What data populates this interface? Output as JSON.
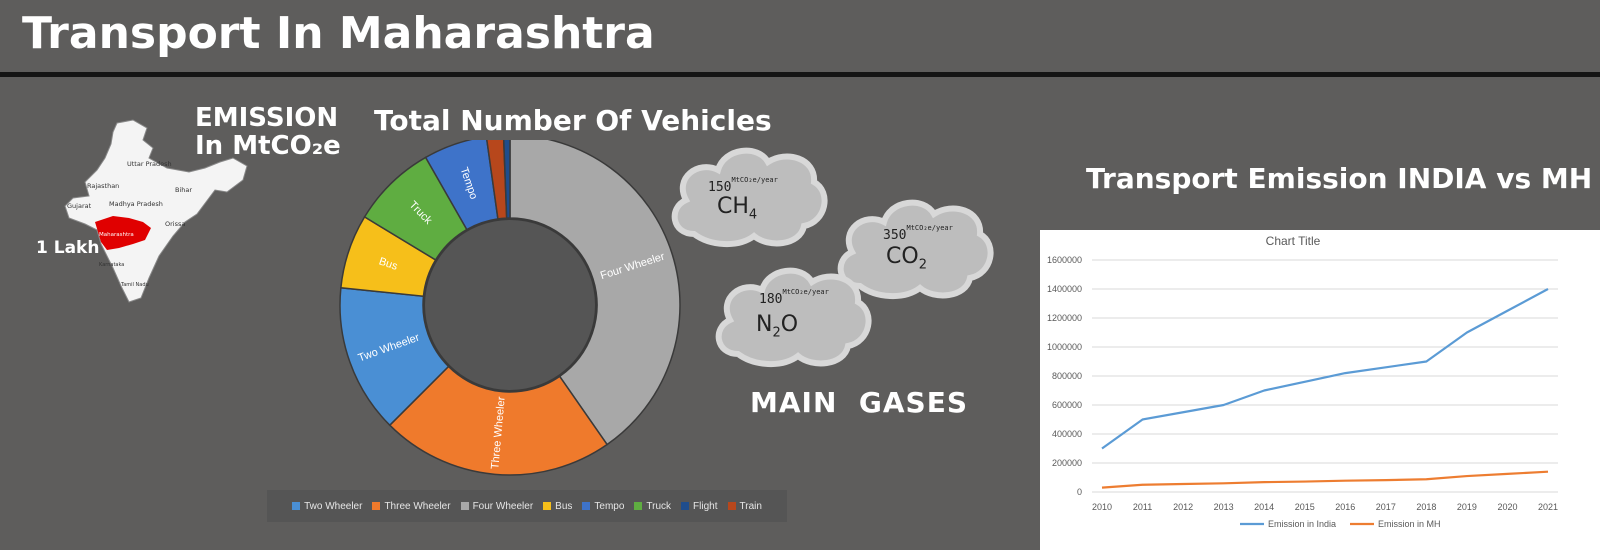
{
  "header": {
    "title": "Transport In Maharashtra"
  },
  "emission": {
    "line1": "EMISSION",
    "line2": "In MtCO₂e",
    "value_label": "1 Lakh"
  },
  "map": {
    "state_labels": [
      "Rajasthan",
      "Uttar Pradesh",
      "Bihar",
      "Gujarat",
      "Madhya Pradesh",
      "Maharashtra",
      "Orissa",
      "Karnataka",
      "Tamil Nadu"
    ],
    "highlight_color": "#e00000"
  },
  "vehicles": {
    "title": "Total Number Of Vehicles"
  },
  "gases": {
    "title": "MAIN  GASES",
    "items": [
      {
        "value": "150",
        "unit": "MtCO₂e/year",
        "formula": "CH",
        "sub": "4"
      },
      {
        "value": "350",
        "unit": "MtCO₂e/year",
        "formula": "CO",
        "sub": "2"
      },
      {
        "value": "180",
        "unit": "MtCO₂e/year",
        "formula": "N",
        "sub": "2",
        "formula_tail": "O"
      }
    ]
  },
  "line_section": {
    "title": "Transport Emission INDIA vs MH"
  },
  "chart_data": [
    {
      "type": "pie",
      "variant": "donut",
      "title": "Total Number Of Vehicles",
      "legend_position": "bottom",
      "slices": [
        {
          "label": "Two Wheeler",
          "value": 14,
          "color": "#4a8fd4"
        },
        {
          "label": "Three Wheeler",
          "value": 22,
          "color": "#ef7a2c"
        },
        {
          "label": "Four Wheeler",
          "value": 40,
          "color": "#a8a8a8"
        },
        {
          "label": "Bus",
          "value": 7,
          "color": "#f6bf1a"
        },
        {
          "label": "Tempo",
          "value": 6,
          "color": "#3e73c9"
        },
        {
          "label": "Truck",
          "value": 8,
          "color": "#5fad41"
        },
        {
          "label": "Flight",
          "value": 0.6,
          "color": "#1f4d8c"
        },
        {
          "label": "Train",
          "value": 1.6,
          "color": "#b7471c"
        }
      ],
      "legend_order": [
        "Two Wheeler",
        "Three Wheeler",
        "Four Wheeler",
        "Bus",
        "Tempo",
        "Truck",
        "Flight",
        "Train"
      ],
      "slice_labels_shown": [
        "Two Wheeler",
        "Three Wheeler",
        "Four Wheeler",
        "Bus",
        "Truck",
        "Tempo"
      ]
    },
    {
      "type": "line",
      "title": "Chart Title",
      "x": [
        "2010",
        "2011",
        "2012",
        "2013",
        "2014",
        "2015",
        "2016",
        "2017",
        "2018",
        "2019",
        "2020",
        "2021"
      ],
      "series": [
        {
          "name": "Emission in India",
          "color": "#5b9bd5",
          "values": [
            300000,
            500000,
            550000,
            600000,
            700000,
            760000,
            820000,
            860000,
            900000,
            1100000,
            1250000,
            1400000
          ]
        },
        {
          "name": "Emission in MH",
          "color": "#ed7d31",
          "values": [
            30000,
            50000,
            55000,
            60000,
            68000,
            72000,
            78000,
            82000,
            88000,
            110000,
            125000,
            140000
          ]
        }
      ],
      "yticks": [
        "0",
        "200000",
        "400000",
        "600000",
        "800000",
        "1000000",
        "1200000",
        "1400000",
        "1600000"
      ],
      "ylim": [
        0,
        1600000
      ],
      "grid": true,
      "legend_position": "bottom"
    }
  ]
}
